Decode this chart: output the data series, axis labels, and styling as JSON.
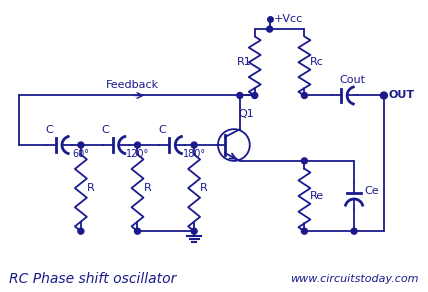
{
  "bg_color": "#ffffff",
  "circuit_color": "#1a1a8c",
  "dot_color": "#1a1a8c",
  "title_text": "RC Phase shift oscillator",
  "website_text": "www.circuitstoday.com",
  "vcc_label": "+Vcc",
  "out_label": "OUT",
  "feedback_label": "Feedback",
  "q1_label": "Q1",
  "r1_label": "R1",
  "rc_label": "Rc",
  "re_label": "Re",
  "ce_label": "Ce",
  "cout_label": "Cout",
  "c_labels": [
    "C",
    "C",
    "C"
  ],
  "r_labels": [
    "R",
    "R",
    "R"
  ],
  "phase_labels": [
    "60°",
    "120°",
    "180°"
  ],
  "font_size_title": 10,
  "font_size_label": 8,
  "font_size_small": 7
}
